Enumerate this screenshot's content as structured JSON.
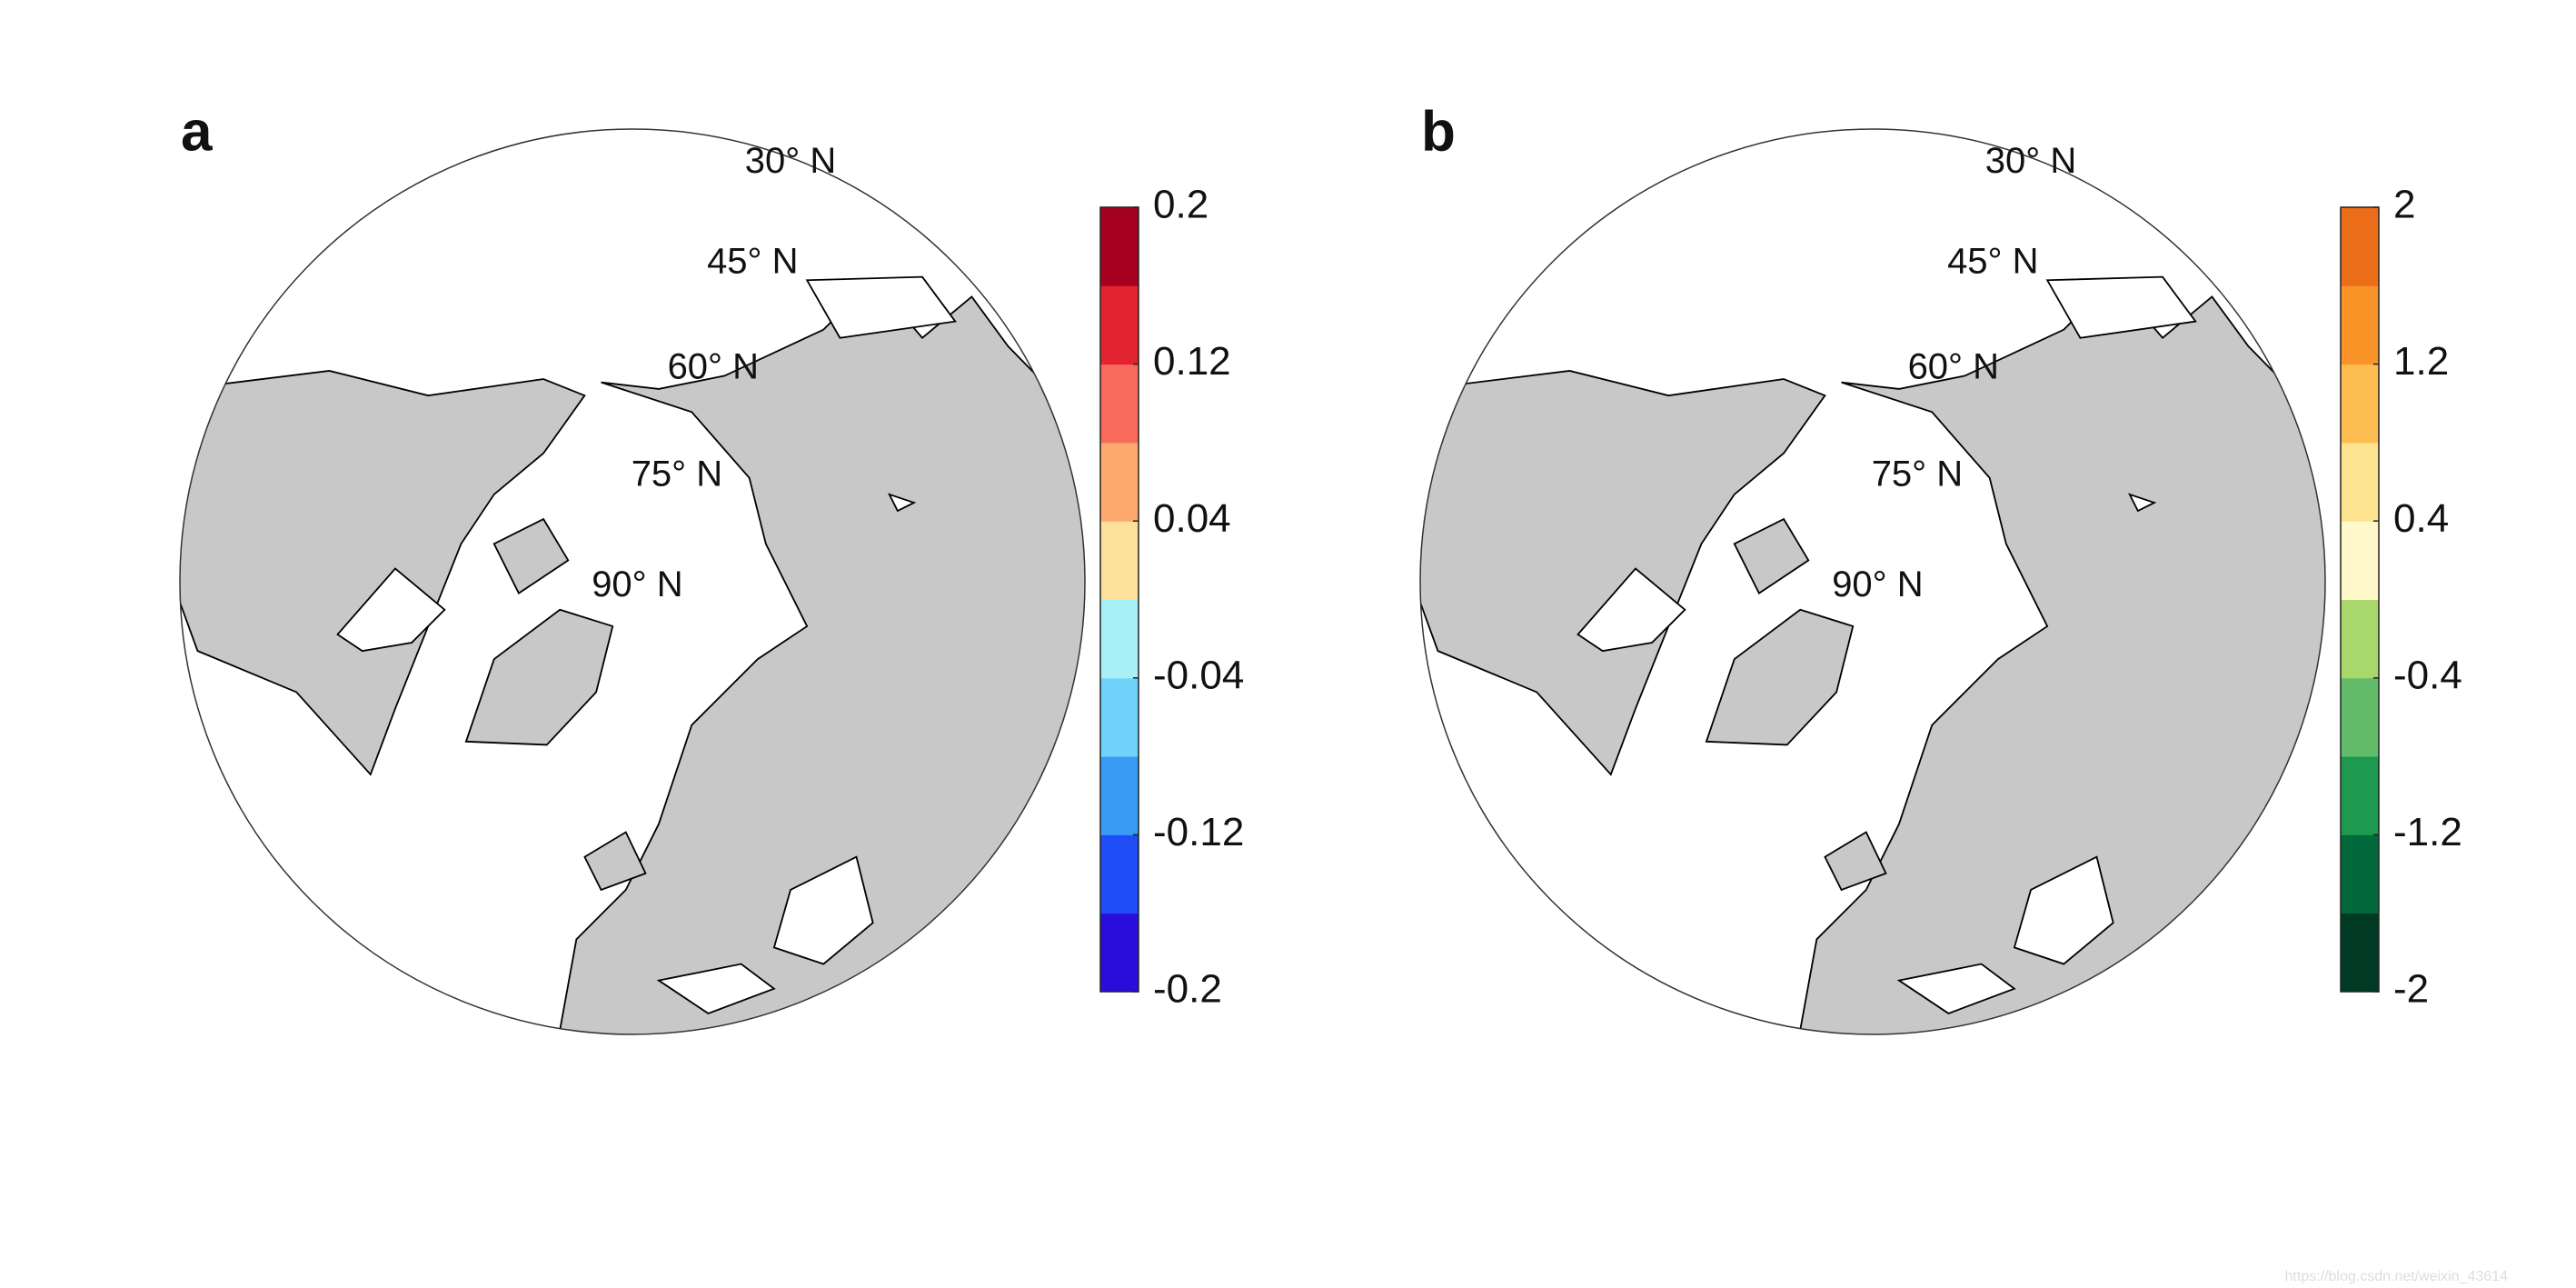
{
  "panels": [
    {
      "label": "a",
      "lat_labels": [
        "30° N",
        "45° N",
        "60° N",
        "75° N",
        "90° N"
      ],
      "colorbar": {
        "lim": [
          -0.2,
          0.2
        ],
        "ticks": [
          -0.2,
          -0.12,
          -0.04,
          0.04,
          0.12,
          0.2
        ],
        "colors": [
          "#2a0ddb",
          "#1e4cf5",
          "#3a9bf7",
          "#6fd2f8",
          "#a8f0f6",
          "#fde09a",
          "#fda86d",
          "#f86a5c",
          "#e22430",
          "#a5001e"
        ]
      }
    },
    {
      "label": "b",
      "lat_labels": [
        "30° N",
        "45° N",
        "60° N",
        "75° N",
        "90° N"
      ],
      "colorbar": {
        "lim": [
          -2,
          2
        ],
        "ticks": [
          -2,
          -1.2,
          -0.4,
          0.4,
          1.2,
          2
        ],
        "colors": [
          "#003a24",
          "#00683a",
          "#1e9950",
          "#62bb68",
          "#a8d86b",
          "#fff8c8",
          "#fde28f",
          "#fdbd50",
          "#fb9428",
          "#ec6e1a"
        ]
      }
    }
  ],
  "watermark": "https://blog.csdn.net/weixin_43614"
}
